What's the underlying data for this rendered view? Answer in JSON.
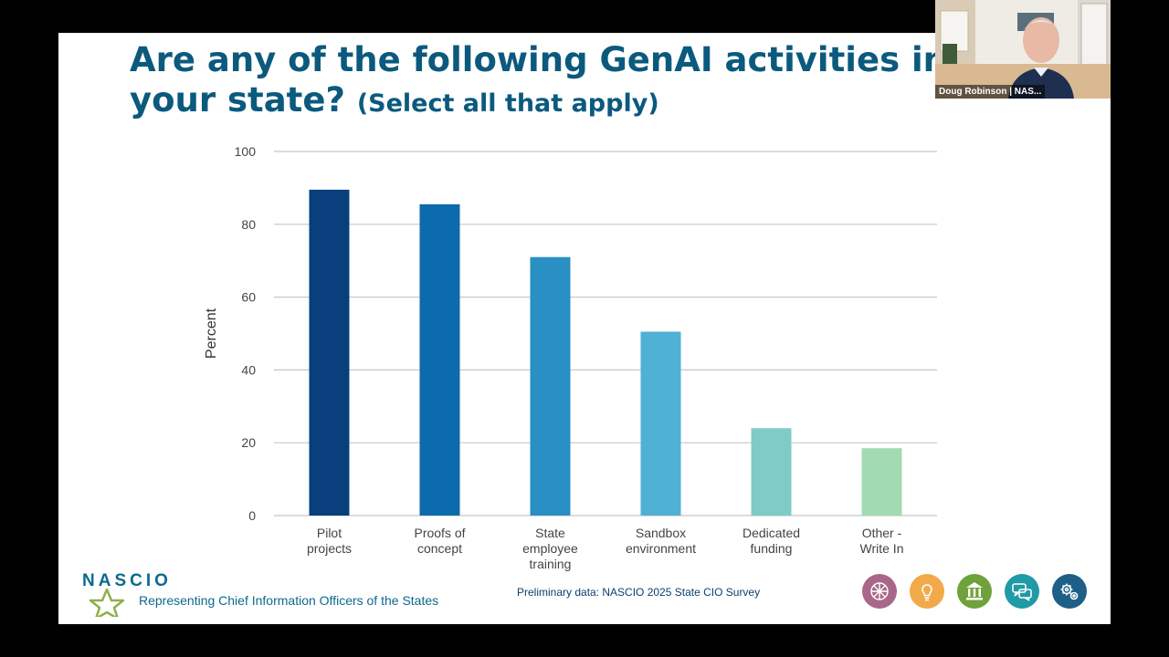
{
  "slide": {
    "title_main": "Are any of the following GenAI activities in pla",
    "title_line2": "your state?",
    "title_sub": "(Select all that apply)",
    "source": "Preliminary data: NASCIO 2025 State CIO Survey",
    "logo_text": "NASCIO",
    "tagline": "Representing Chief Information Officers of the States"
  },
  "footer_icons": [
    {
      "name": "network-icon",
      "color": "#a8678a"
    },
    {
      "name": "lightbulb-icon",
      "color": "#f1a94a"
    },
    {
      "name": "government-building-icon",
      "color": "#6fa23a"
    },
    {
      "name": "chat-bubbles-icon",
      "color": "#1f9aa6"
    },
    {
      "name": "gears-icon",
      "color": "#1d5f86"
    }
  ],
  "video": {
    "participant_name": "Doug Robinson | NAS..."
  },
  "chart_data": {
    "type": "bar",
    "categories": [
      [
        "Pilot",
        "projects"
      ],
      [
        "Proofs of",
        "concept"
      ],
      [
        "State",
        "employee",
        "training"
      ],
      [
        "Sandbox",
        "environment"
      ],
      [
        "Dedicated",
        "funding"
      ],
      [
        "Other -",
        "Write In"
      ]
    ],
    "values": [
      89.5,
      85.5,
      71,
      50.5,
      24,
      18.5
    ],
    "colors": [
      "#083f7c",
      "#0c6bad",
      "#2a8fc3",
      "#4fb1d6",
      "#7fcbc5",
      "#a2dbb1"
    ],
    "ylabel": "Percent",
    "ylim": [
      0,
      100
    ],
    "yticks": [
      0,
      20,
      40,
      60,
      80,
      100
    ],
    "grid": true
  }
}
